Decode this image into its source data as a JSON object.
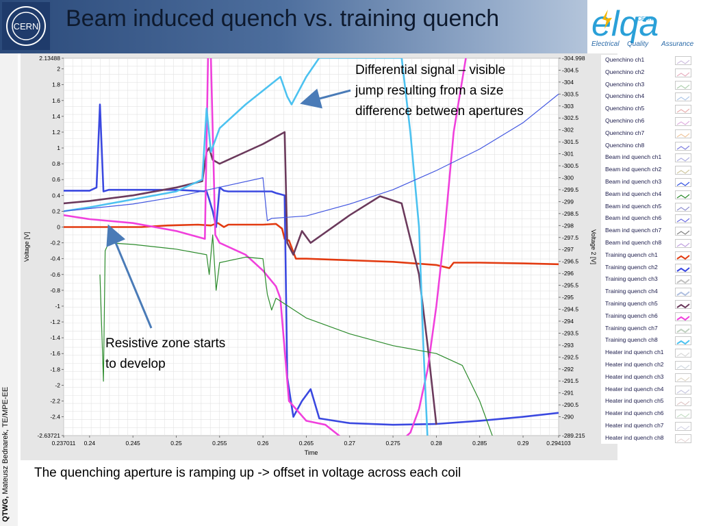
{
  "slide": {
    "title": "Beam induced quench vs. training quench",
    "side_author_bold": "QTWG,",
    "side_author_rest": " Mateusz Bednarek, TE/MPE-EE",
    "footer_note": "The quenching aperture is ramping up -> offset in voltage across each coil",
    "callout_top_lines": [
      "Differential signal – visible",
      "jump resulting from a size",
      "difference between apertures"
    ],
    "callout_bottom_lines": [
      "Resistive zone starts",
      "to develop"
    ],
    "cern_logo_text": "CERN",
    "elqa_logo": {
      "text": "elqa",
      "sub_left": "Electrical",
      "sub_mid": "Quality",
      "sub_right": "Assurance",
      "small": "CERN"
    },
    "arrow_color": "#4a7bb7"
  },
  "chart_data": {
    "type": "line",
    "xlabel": "Time",
    "ylabel": "Voltage [V]",
    "y2label": "Voltage 2 [V]",
    "xlim": [
      0.237011,
      0.294103
    ],
    "ylim": [
      -2.63721,
      2.13488
    ],
    "y2lim": [
      -289.215,
      -304.998
    ],
    "x_ticks": [
      "0.237011",
      "0.24",
      "0.245",
      "0.25",
      "0.255",
      "0.26",
      "0.265",
      "0.27",
      "0.275",
      "0.28",
      "0.285",
      "0.29",
      "0.294103"
    ],
    "y_ticks": [
      "2.13488",
      "2",
      "1.8",
      "1.6",
      "1.4",
      "1.2",
      "1",
      "0.8",
      "0.6",
      "0.4",
      "0.2",
      "0",
      "-0.2",
      "-0.4",
      "-0.6",
      "-0.8",
      "-1",
      "-1.2",
      "-1.4",
      "-1.6",
      "-1.8",
      "-2",
      "-2.2",
      "-2.4",
      "-2.63721"
    ],
    "y2_ticks": [
      "-304.998",
      "-304.5",
      "-304",
      "-303.5",
      "-303",
      "-302.5",
      "-302",
      "-301.5",
      "-301",
      "-300.5",
      "-300",
      "-299.5",
      "-299",
      "-298.5",
      "-298",
      "-297.5",
      "-297",
      "-296.5",
      "-296",
      "-295.5",
      "-295",
      "-294.5",
      "-294",
      "-293.5",
      "-293",
      "-292.5",
      "-292",
      "-291.5",
      "-291",
      "-290.5",
      "-290",
      "-289.215"
    ],
    "grid": true,
    "legend": "right",
    "series": [
      {
        "name": "Training quench ch1",
        "color": "#e23a10",
        "x": [
          0.237,
          0.24,
          0.243,
          0.246,
          0.249,
          0.2525,
          0.254,
          0.2548,
          0.2555,
          0.256,
          0.258,
          0.26,
          0.2615,
          0.2622,
          0.2625,
          0.263,
          0.2638,
          0.265,
          0.27,
          0.275,
          0.28,
          0.2815,
          0.282,
          0.285,
          0.29,
          0.2941
        ],
        "y": [
          0.0,
          0.0,
          0.0,
          0.0,
          0.02,
          0.03,
          0.02,
          0.05,
          0.0,
          0.03,
          0.03,
          0.03,
          0.04,
          -0.02,
          -0.15,
          -0.17,
          -0.4,
          -0.4,
          -0.42,
          -0.44,
          -0.48,
          -0.52,
          -0.45,
          -0.45,
          -0.46,
          -0.47
        ]
      },
      {
        "name": "Training quench ch2",
        "color": "#3a48e0",
        "x": [
          0.237,
          0.24,
          0.2408,
          0.2412,
          0.2416,
          0.2422,
          0.245,
          0.25,
          0.2535,
          0.2538,
          0.2542,
          0.2546,
          0.255,
          0.2555,
          0.256,
          0.258,
          0.261,
          0.2615,
          0.2625,
          0.2628,
          0.2635,
          0.2645,
          0.2655,
          0.2665,
          0.27,
          0.275,
          0.28,
          0.285,
          0.29,
          0.2941
        ],
        "y": [
          0.46,
          0.46,
          0.5,
          1.55,
          0.45,
          0.47,
          0.47,
          0.47,
          0.45,
          0.35,
          0.2,
          0.0,
          0.5,
          0.46,
          0.45,
          0.45,
          0.45,
          0.43,
          0.4,
          -1.9,
          -2.4,
          -2.2,
          -2.05,
          -2.42,
          -2.48,
          -2.5,
          -2.49,
          -2.45,
          -2.4,
          -2.35
        ]
      },
      {
        "name": "Training quench ch5",
        "color": "#6b3a5c",
        "x": [
          0.237,
          0.24,
          0.245,
          0.25,
          0.253,
          0.2535,
          0.2538,
          0.2542,
          0.255,
          0.26,
          0.2625,
          0.2628,
          0.2635,
          0.2645,
          0.2655,
          0.27,
          0.2735,
          0.276,
          0.278,
          0.279,
          0.28
        ],
        "y": [
          0.3,
          0.33,
          0.4,
          0.5,
          0.58,
          0.95,
          1.0,
          0.85,
          0.8,
          1.05,
          1.2,
          -0.2,
          -0.35,
          -0.05,
          -0.2,
          0.15,
          0.39,
          0.3,
          -0.6,
          -1.5,
          -2.5
        ]
      },
      {
        "name": "Training quench ch6",
        "color": "#f040dc",
        "x": [
          0.237,
          0.24,
          0.245,
          0.25,
          0.2533,
          0.2538,
          0.2545,
          0.255,
          0.258,
          0.26,
          0.2615,
          0.262,
          0.263,
          0.265,
          0.2672,
          0.2695,
          0.276,
          0.277,
          0.278,
          0.279,
          0.28,
          0.281,
          0.282,
          0.2835
        ],
        "y": [
          0.15,
          0.1,
          0.05,
          -0.05,
          -0.15,
          3.0,
          -0.1,
          -0.2,
          -0.35,
          -0.55,
          -0.75,
          -0.9,
          -2.2,
          -2.45,
          -2.5,
          -2.7,
          -2.7,
          -2.6,
          -2.3,
          -1.8,
          -1.0,
          0.0,
          1.2,
          2.2
        ]
      },
      {
        "name": "Training quench ch8",
        "color": "#4cc2f0",
        "x": [
          0.237,
          0.24,
          0.245,
          0.25,
          0.253,
          0.2535,
          0.254,
          0.255,
          0.258,
          0.262,
          0.2628,
          0.2633,
          0.265,
          0.2665,
          0.276,
          0.277,
          0.278,
          0.2785,
          0.279
        ],
        "y": [
          0.2,
          0.25,
          0.35,
          0.45,
          0.6,
          1.5,
          0.95,
          1.25,
          1.55,
          1.9,
          1.65,
          1.55,
          1.9,
          2.14,
          2.14,
          1.2,
          0.0,
          -1.5,
          -2.7
        ]
      },
      {
        "name": "Beam ind quench ch4",
        "color": "#2a8a2a",
        "x": [
          0.2412,
          0.2416,
          0.2418,
          0.2422,
          0.245,
          0.25,
          0.2535,
          0.2538,
          0.2542,
          0.2546,
          0.255,
          0.258,
          0.26,
          0.2605,
          0.261,
          0.2615,
          0.265,
          0.27,
          0.275,
          0.28,
          0.283,
          0.285,
          0.2865
        ],
        "y": [
          -0.6,
          -1.95,
          -0.3,
          -0.2,
          -0.22,
          -0.28,
          -0.35,
          -0.6,
          -0.1,
          -0.8,
          -0.45,
          -0.38,
          -0.4,
          -0.85,
          -1.05,
          -0.9,
          -1.15,
          -1.35,
          -1.5,
          -1.6,
          -1.75,
          -2.2,
          -2.65
        ]
      },
      {
        "name": "Beam ind quench ch3",
        "color": "#4055e0",
        "x": [
          0.237,
          0.245,
          0.25,
          0.255,
          0.26,
          0.2605,
          0.261,
          0.265,
          0.27,
          0.275,
          0.28,
          0.285,
          0.29,
          0.2941
        ],
        "y": [
          -298.6,
          -298.9,
          -299.2,
          -299.6,
          -300.0,
          -298.2,
          -298.3,
          -298.4,
          -298.9,
          -299.5,
          -300.3,
          -301.2,
          -302.3,
          -303.5
        ]
      }
    ]
  },
  "legend": {
    "items": [
      {
        "label": "Quenchino ch1"
      },
      {
        "label": "Quenchino ch2"
      },
      {
        "label": "Quenchino ch3"
      },
      {
        "label": "Quenchino ch4"
      },
      {
        "label": "Quenchino ch5"
      },
      {
        "label": "Quenchino ch6"
      },
      {
        "label": "Quenchino ch7"
      },
      {
        "label": "Quenchino ch8"
      },
      {
        "label": "Beam ind quench ch1"
      },
      {
        "label": "Beam ind quench ch2"
      },
      {
        "label": "Beam ind quench ch3"
      },
      {
        "label": "Beam ind quench ch4"
      },
      {
        "label": "Beam ind quench ch5"
      },
      {
        "label": "Beam ind quench ch6"
      },
      {
        "label": "Beam ind quench ch7"
      },
      {
        "label": "Beam ind quench ch8"
      },
      {
        "label": "Training quench ch1"
      },
      {
        "label": "Training quench ch2"
      },
      {
        "label": "Training quench ch3"
      },
      {
        "label": "Training quench ch4"
      },
      {
        "label": "Training quench ch5"
      },
      {
        "label": "Training quench ch6"
      },
      {
        "label": "Training quench ch7"
      },
      {
        "label": "Training quench ch8"
      },
      {
        "label": "Heater ind quench ch1"
      },
      {
        "label": "Heater ind quench ch2"
      },
      {
        "label": "Heater ind quench ch3"
      },
      {
        "label": "Heater ind quench ch4"
      },
      {
        "label": "Heater ind quench ch5"
      },
      {
        "label": "Heater ind quench ch6"
      },
      {
        "label": "Heater ind quench ch7"
      },
      {
        "label": "Heater ind quench ch8"
      }
    ],
    "swatch_colors": [
      "#d0c0e0",
      "#e8b0c0",
      "#b0d0b0",
      "#b0c8e8",
      "#e8b0b0",
      "#e0b0e0",
      "#f0c8a0",
      "#8080e0",
      "#b0b0e0",
      "#d0c8a0",
      "#3050e0",
      "#2a8a2a",
      "#9090d0",
      "#7070e0",
      "#808080",
      "#c0a0e0",
      "#e23a10",
      "#3a48e0",
      "#c0c0c0",
      "#b0c0e0",
      "#6b3a5c",
      "#f040dc",
      "#c0d0c0",
      "#4cc2f0",
      "#d8d8d8",
      "#d0d8e0",
      "#e0d8c8",
      "#c8c8e0",
      "#e0c8c8",
      "#c8e0c8",
      "#d8d8e8",
      "#e8d8d8"
    ]
  }
}
